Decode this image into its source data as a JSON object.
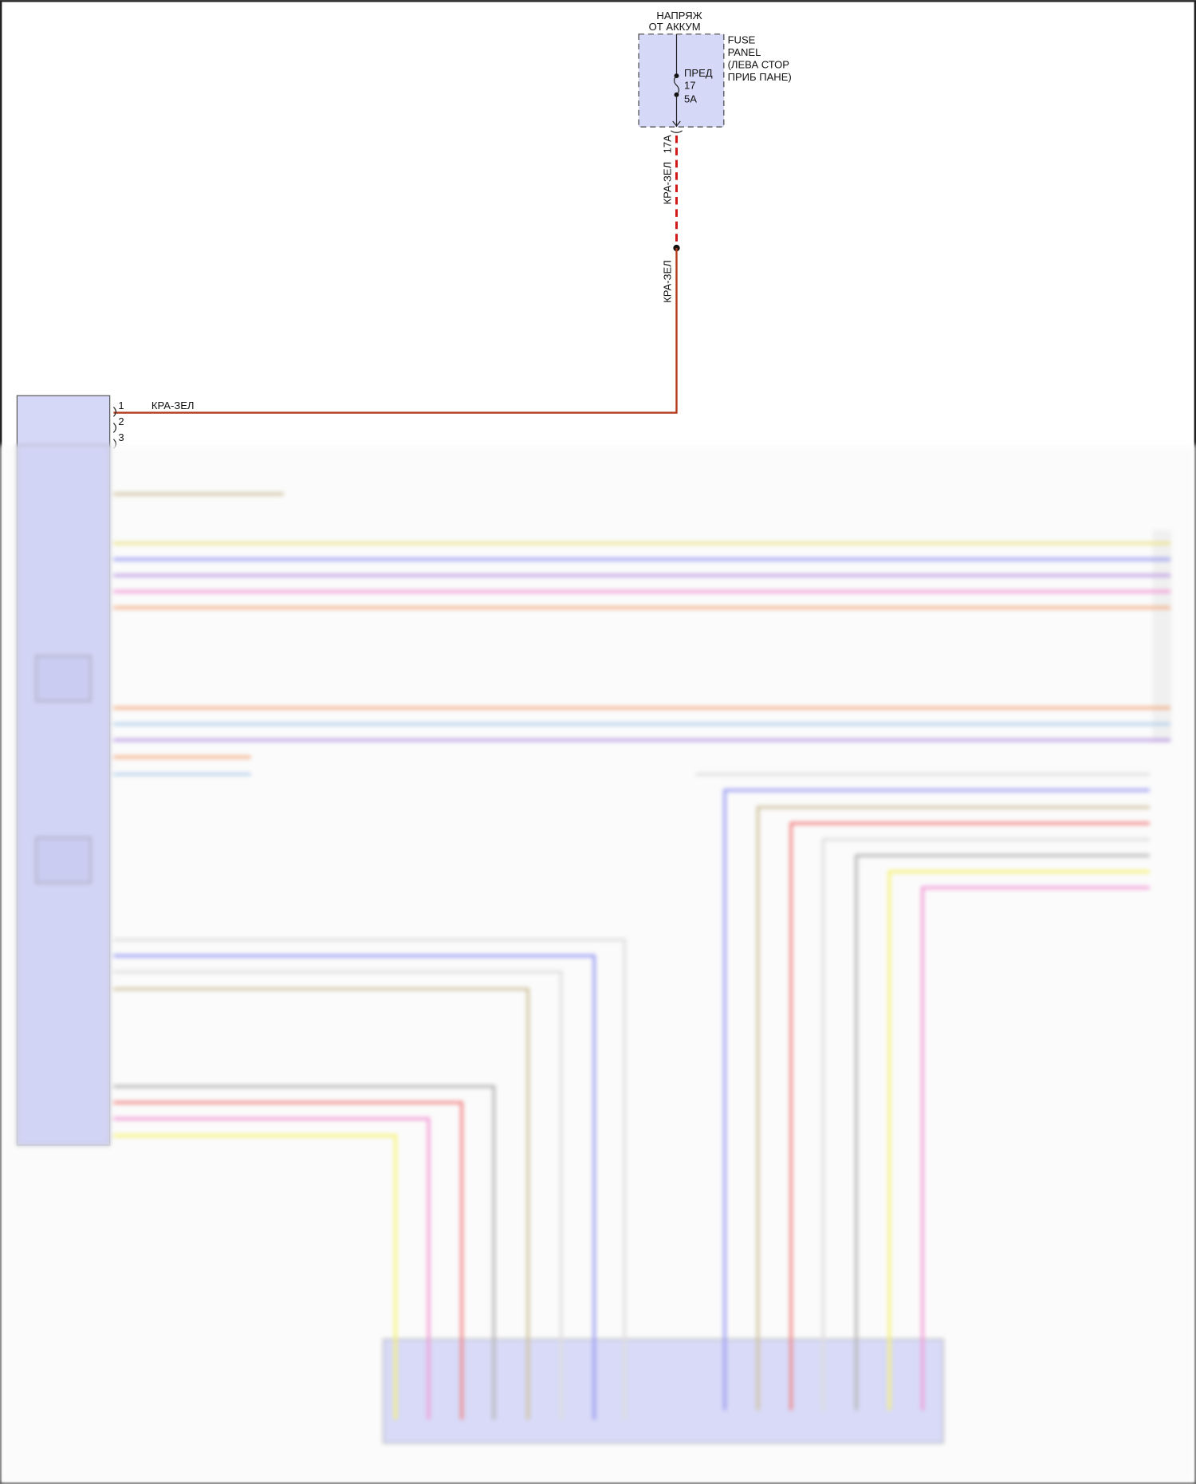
{
  "fuse": {
    "source_label": [
      "НАПРЯЖ",
      "ОТ АККУМ"
    ],
    "panel_label": [
      "FUSE",
      "PANEL",
      "(ЛЕВА СТОР",
      "ПРИБ ПАНЕ)"
    ],
    "fuse_label": [
      "ПРЕД",
      "17",
      "5A"
    ],
    "connector_pin": "17A"
  },
  "wire_main": {
    "color_label": "КРА-ЗЕЛ",
    "color": "#c0392b"
  },
  "module": {
    "pins_visible": [
      "1",
      "2",
      "3"
    ]
  },
  "wire_colors": {
    "yellow": "#e8e07a",
    "blue": "#8a8cf0",
    "purple": "#b08ae0",
    "pink": "#f08ad0",
    "orange": "#f0a070",
    "lightblue": "#a8c8e8",
    "tan": "#c8b890",
    "red": "#f07070",
    "gray": "#a8a8a8",
    "lightgray": "#d8d8d8",
    "bright_yellow": "#f4f060"
  }
}
